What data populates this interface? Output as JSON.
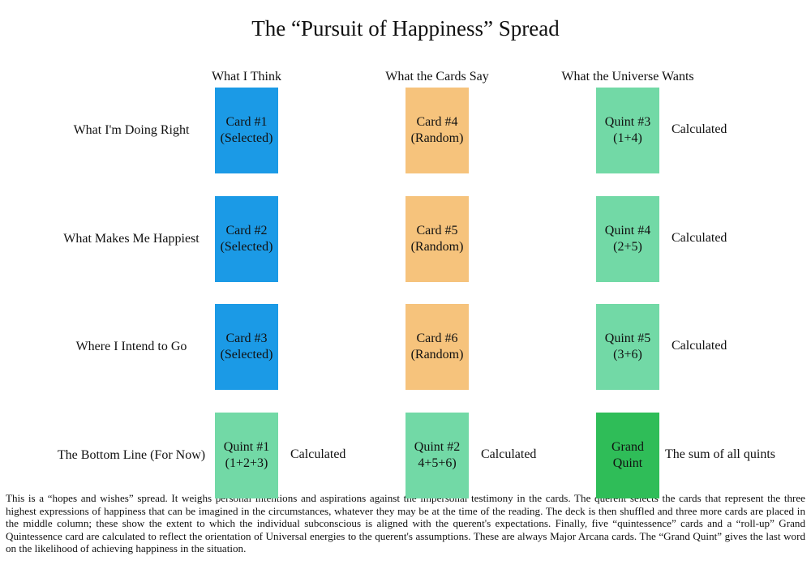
{
  "title": "The “Pursuit of Happiness” Spread",
  "columns": [
    "What I Think",
    "What the Cards Say",
    "What the Universe Wants"
  ],
  "rows": [
    {
      "label": "What I'm Doing Right",
      "cards": [
        {
          "lines": [
            "Card #1",
            "(Selected)"
          ],
          "color": "#1b9ae6"
        },
        {
          "lines": [
            "Card #4",
            "(Random)"
          ],
          "color": "#f6c37c"
        },
        {
          "lines": [
            "Quint #3",
            "(1+4)"
          ],
          "color": "#72d9a6",
          "note": "Calculated"
        }
      ]
    },
    {
      "label": "What Makes Me Happiest",
      "cards": [
        {
          "lines": [
            "Card #2",
            "(Selected)"
          ],
          "color": "#1b9ae6"
        },
        {
          "lines": [
            "Card #5",
            "(Random)"
          ],
          "color": "#f6c37c"
        },
        {
          "lines": [
            "Quint #4",
            "(2+5)"
          ],
          "color": "#72d9a6",
          "note": "Calculated"
        }
      ]
    },
    {
      "label": "Where I Intend to Go",
      "cards": [
        {
          "lines": [
            "Card #3",
            "(Selected)"
          ],
          "color": "#1b9ae6"
        },
        {
          "lines": [
            "Card #6",
            "(Random)"
          ],
          "color": "#f6c37c"
        },
        {
          "lines": [
            "Quint #5",
            "(3+6)"
          ],
          "color": "#72d9a6",
          "note": "Calculated"
        }
      ]
    },
    {
      "label": "The Bottom Line (For Now)",
      "cards": [
        {
          "lines": [
            "Quint #1",
            "(1+2+3)"
          ],
          "color": "#72d9a6",
          "note": "Calculated"
        },
        {
          "lines": [
            "Quint #2",
            "4+5+6)"
          ],
          "color": "#72d9a6",
          "note": "Calculated"
        },
        {
          "lines": [
            "Grand",
            "Quint"
          ],
          "color": "#2fbd58",
          "note": "The sum of all quints"
        }
      ]
    }
  ],
  "description": "This is a “hopes and wishes” spread. It weighs personal intentions and aspirations against the impersonal testimony in the cards. The querent selects the cards that represent the three highest expressions of happiness that can be imagined in the circumstances, whatever they may be at the time of the reading. The deck is then shuffled and three more cards are placed in the middle column; these show the extent to which the individual subconscious is aligned with the querent's expectations. Finally, five “quintessence” cards and a “roll-up” Grand Quintessence card are calculated to reflect the orientation of Universal energies to the querent's assumptions. These are always Major Arcana cards. The “Grand Quint” gives the last word on the likelihood of achieving happiness in the situation."
}
